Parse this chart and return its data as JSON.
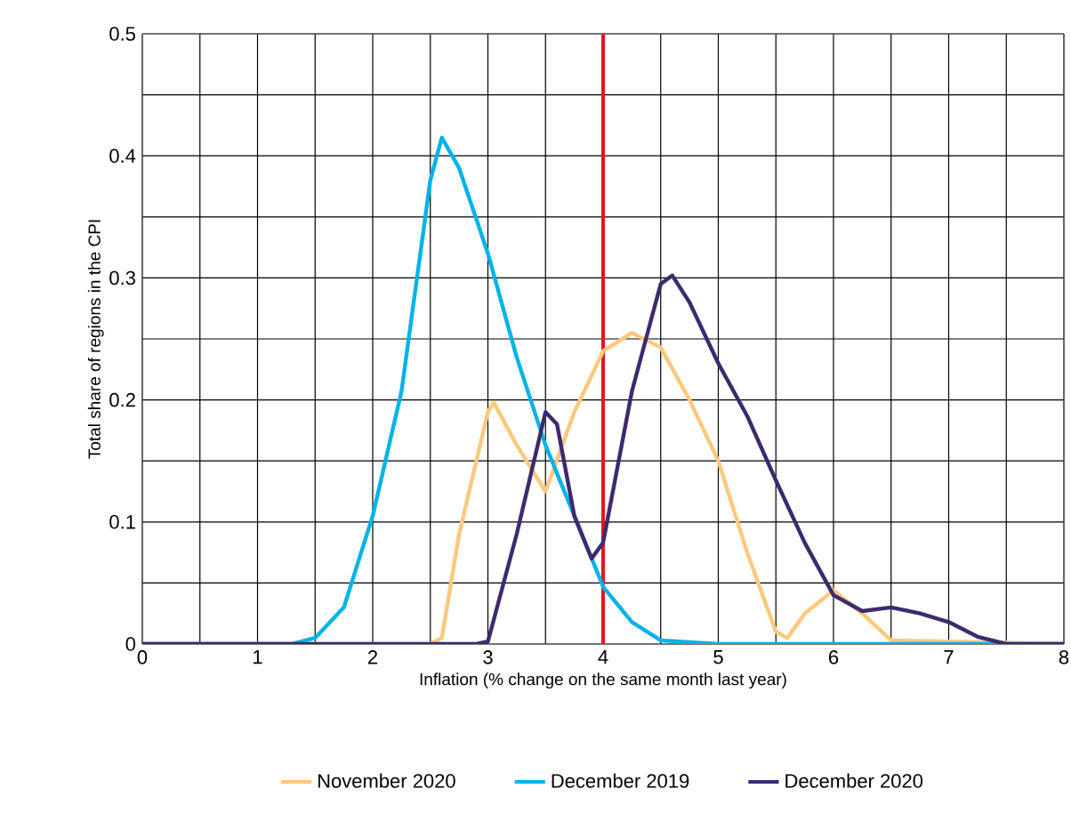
{
  "chart_data": {
    "type": "line",
    "xlabel": "Inflation (% change on the same month last year)",
    "ylabel": "Total share of regions in the CPI",
    "xlim": [
      0,
      8
    ],
    "ylim": [
      0,
      0.5
    ],
    "xticks": [
      0,
      {
        "value": 0.5,
        "label": null
      },
      1,
      {
        "value": 1.5,
        "label": null
      },
      2,
      {
        "value": 2.5,
        "label": null
      },
      3,
      {
        "value": 3.5,
        "label": null
      },
      4,
      {
        "value": 4.5,
        "label": null
      },
      5,
      {
        "value": 5.5,
        "label": null
      },
      6,
      {
        "value": 6.5,
        "label": null
      },
      7,
      {
        "value": 7.5,
        "label": null
      },
      8
    ],
    "yticks": [
      0,
      {
        "value": 0.05,
        "label": null
      },
      0.1,
      {
        "value": 0.15,
        "label": null
      },
      0.2,
      {
        "value": 0.25,
        "label": null
      },
      0.3,
      {
        "value": 0.35,
        "label": null
      },
      0.4,
      {
        "value": 0.45,
        "label": null
      },
      0.5
    ],
    "grid": true,
    "legend": "bottom",
    "marker": "none",
    "line_style": "solid",
    "ref_lines": [
      {
        "axis": "x",
        "value": 4,
        "color": "#e8151b"
      }
    ],
    "series": [
      {
        "name": "November 2020",
        "color": "#fdc97d",
        "x": [
          0,
          2.5,
          2.6,
          2.75,
          3.0,
          3.05,
          3.25,
          3.5,
          3.75,
          4.0,
          4.25,
          4.5,
          4.75,
          5.0,
          5.25,
          5.5,
          5.6,
          5.75,
          6.0,
          6.25,
          6.5,
          8
        ],
        "values": [
          0,
          0,
          0.005,
          0.09,
          0.19,
          0.198,
          0.163,
          0.125,
          0.19,
          0.24,
          0.255,
          0.243,
          0.2,
          0.15,
          0.075,
          0.01,
          0.005,
          0.025,
          0.044,
          0.025,
          0.003,
          0
        ]
      },
      {
        "name": "December 2019",
        "color": "#00b4e6",
        "x": [
          0,
          1.3,
          1.5,
          1.75,
          2.0,
          2.25,
          2.5,
          2.6,
          2.75,
          3.0,
          3.25,
          3.5,
          3.75,
          4.0,
          4.25,
          4.5,
          5.0,
          8
        ],
        "values": [
          0,
          0,
          0.005,
          0.03,
          0.105,
          0.207,
          0.38,
          0.415,
          0.39,
          0.32,
          0.235,
          0.163,
          0.105,
          0.047,
          0.018,
          0.003,
          0,
          0
        ]
      },
      {
        "name": "December 2020",
        "color": "#3d2a6e",
        "x": [
          0,
          2.9,
          3.0,
          3.25,
          3.5,
          3.6,
          3.75,
          3.9,
          4.0,
          4.25,
          4.5,
          4.6,
          4.75,
          5.0,
          5.25,
          5.5,
          5.75,
          6.0,
          6.25,
          6.5,
          6.75,
          7.0,
          7.25,
          7.5,
          8
        ],
        "values": [
          0,
          0,
          0.002,
          0.09,
          0.19,
          0.18,
          0.105,
          0.07,
          0.083,
          0.207,
          0.295,
          0.302,
          0.28,
          0.23,
          0.187,
          0.134,
          0.083,
          0.04,
          0.027,
          0.03,
          0.025,
          0.018,
          0.006,
          0,
          0
        ]
      }
    ]
  }
}
